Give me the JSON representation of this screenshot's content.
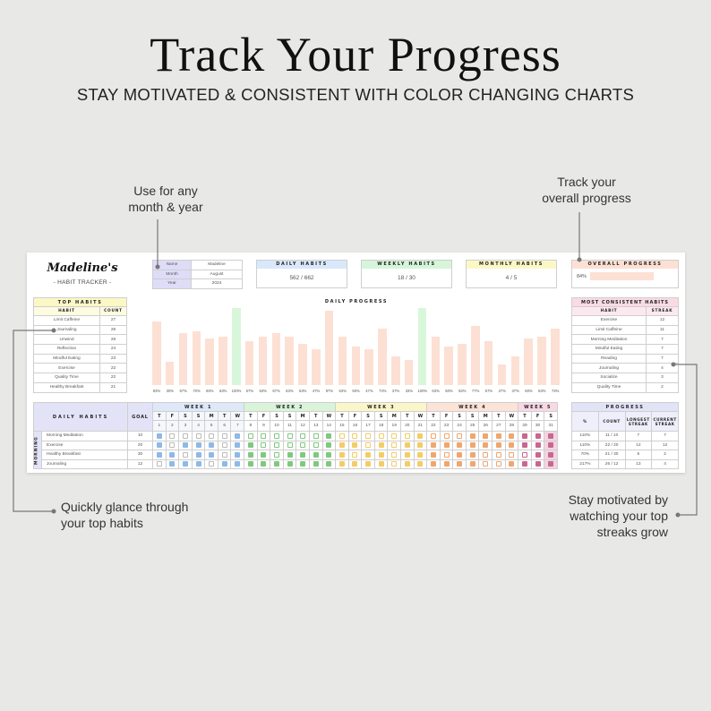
{
  "header": {
    "title": "Track Your Progress",
    "subtitle": "STAY MOTIVATED & CONSISTENT WITH COLOR CHANGING CHARTS"
  },
  "annotations": {
    "month_year": [
      "Use for any",
      "month & year"
    ],
    "overall": [
      "Track your",
      "overall progress"
    ],
    "top_habits": [
      "Quickly glance through",
      "your top habits"
    ],
    "streaks": [
      "Stay motivated by",
      "watching your top",
      "streaks grow"
    ]
  },
  "tracker": {
    "name_logo": "Madeline's",
    "logo_sub": "- HABIT TRACKER -",
    "info": [
      {
        "label": "Name",
        "value": "Madeline"
      },
      {
        "label": "Month",
        "value": "August"
      },
      {
        "label": "Year",
        "value": "2024"
      }
    ],
    "cards": [
      {
        "title": "DAILY HABITS",
        "value": "562 / 662",
        "color": "#d9e8fb"
      },
      {
        "title": "WEEKLY HABITS",
        "value": "18 / 30",
        "color": "#d6f5d9"
      },
      {
        "title": "MONTHLY HABITS",
        "value": "4 / 5",
        "color": "#fbf8c6"
      }
    ],
    "overall": {
      "title": "OVERALL PROGRESS",
      "label": "84%",
      "value": 84,
      "color": "#fde0d4"
    },
    "top_habits": {
      "title": "TOP HABITS",
      "col_habit": "HABIT",
      "col_count": "COUNT",
      "rows": [
        [
          "Limit Caffeine",
          "27"
        ],
        [
          "Journaling",
          "26"
        ],
        [
          "Unwind",
          "26"
        ],
        [
          "Reflection",
          "24"
        ],
        [
          "Mindful Eating",
          "23"
        ],
        [
          "Exercise",
          "22"
        ],
        [
          "Quality Time",
          "22"
        ],
        [
          "Healthy Breakfast",
          "21"
        ]
      ]
    },
    "consistent": {
      "title": "MOST CONSISTENT HABITS",
      "col_habit": "HABIT",
      "col_streak": "STREAK",
      "rows": [
        [
          "Exercise",
          "12"
        ],
        [
          "Limit Caffeine",
          "11"
        ],
        [
          "Morning Meditation",
          "7"
        ],
        [
          "Mindful Eating",
          "7"
        ],
        [
          "Reading",
          "7"
        ],
        [
          "Journaling",
          "4"
        ],
        [
          "Socialize",
          "3"
        ],
        [
          "Quality Time",
          "2"
        ]
      ]
    },
    "progress": {
      "title": "PROGRESS",
      "cols": [
        "%",
        "COUNT",
        "LONGEST STREAK",
        "CURRENT STREAK"
      ],
      "rows": [
        [
          "110%",
          "11 / 10",
          "7",
          "7"
        ],
        [
          "110%",
          "22 / 20",
          "12",
          "12"
        ],
        [
          "70%",
          "21 / 30",
          "5",
          "2"
        ],
        [
          "217%",
          "26 / 12",
          "13",
          "4"
        ]
      ]
    },
    "grid": {
      "col_habits": "DAILY HABITS",
      "col_goal": "GOAL",
      "section": "MORNING",
      "weeks": [
        {
          "label": "WEEK 1",
          "color": "#dde9f8",
          "check": "#8fb9e6"
        },
        {
          "label": "WEEK 2",
          "color": "#d9f4d9",
          "check": "#7fc97f"
        },
        {
          "label": "WEEK 3",
          "color": "#fbf6c9",
          "check": "#f3cd66"
        },
        {
          "label": "WEEK 4",
          "color": "#fde2d6",
          "check": "#efa76e"
        },
        {
          "label": "WEEK 5",
          "color": "#f8d8e5",
          "check": "#c9678f"
        }
      ],
      "day_letters": [
        "T",
        "F",
        "S",
        "S",
        "M",
        "T",
        "W",
        "T",
        "F",
        "S",
        "S",
        "M",
        "T",
        "W",
        "T",
        "F",
        "S",
        "S",
        "M",
        "T",
        "W",
        "T",
        "F",
        "S",
        "S",
        "M",
        "T",
        "W",
        "T",
        "F",
        "S"
      ],
      "habits": [
        {
          "name": "Morning Meditation",
          "goal": "10",
          "checks": "1000001000000100000010001111111"
        },
        {
          "name": "Exercise",
          "goal": "20",
          "checks": "1011101100000111010111111111111"
        },
        {
          "name": "Healthy Breakfast",
          "goal": "30",
          "checks": "1101101110111110110111011000011"
        },
        {
          "name": "Journaling",
          "goal": "12",
          "checks": "0111011111111111110111111001111"
        }
      ]
    }
  },
  "chart_data": {
    "type": "bar",
    "title": "DAILY PROGRESS",
    "categories": [
      "1",
      "2",
      "3",
      "4",
      "5",
      "6",
      "7",
      "8",
      "9",
      "10",
      "11",
      "12",
      "13",
      "14",
      "15",
      "16",
      "17",
      "18",
      "19",
      "20",
      "21",
      "22",
      "23",
      "24",
      "25",
      "26",
      "27",
      "28",
      "29",
      "30",
      "31"
    ],
    "values": [
      83,
      30,
      67,
      70,
      60,
      63,
      100,
      57,
      63,
      67,
      63,
      53,
      47,
      97,
      63,
      50,
      47,
      73,
      37,
      33,
      100,
      63,
      50,
      53,
      77,
      57,
      27,
      37,
      60,
      63,
      73
    ],
    "ylim": [
      0,
      100
    ],
    "bar_color": "#fde0d4",
    "complete_color": "#d8f7da"
  }
}
